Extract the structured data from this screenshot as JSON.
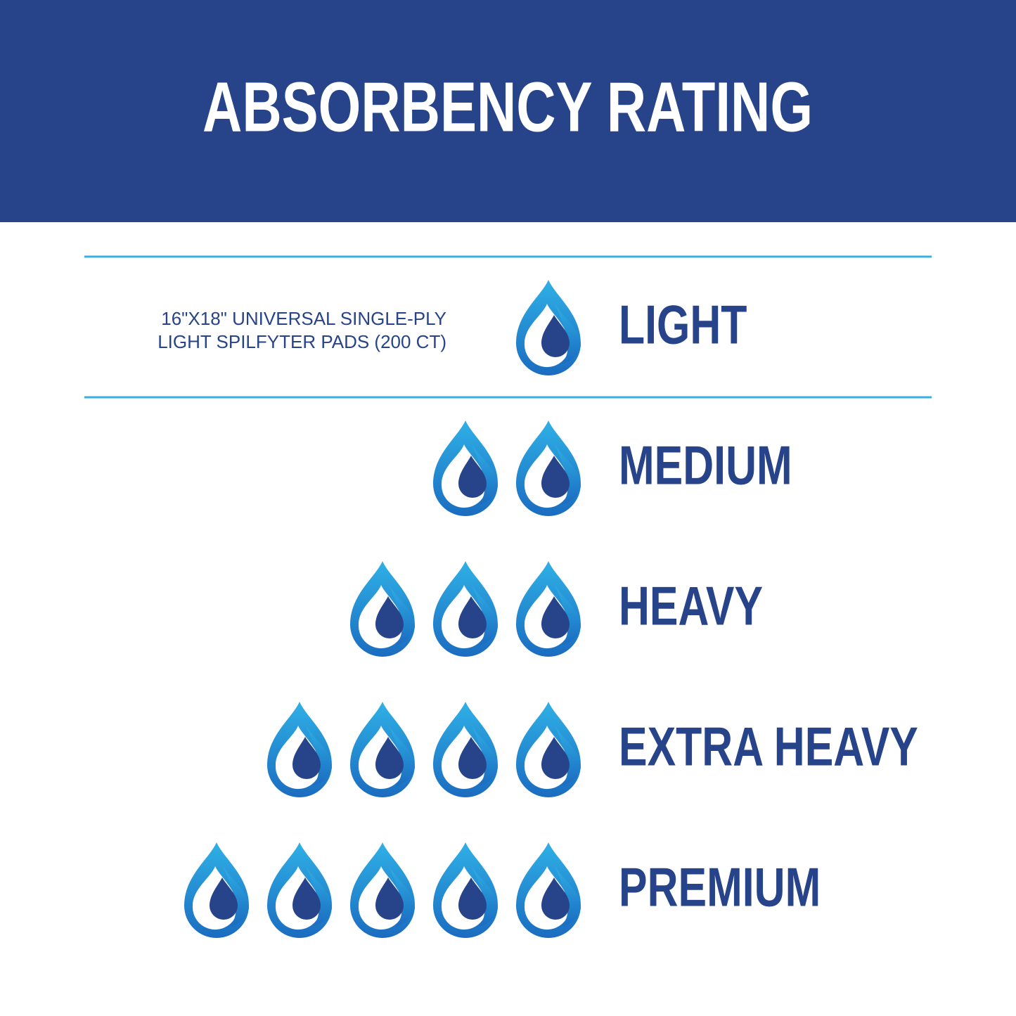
{
  "header": {
    "title": "ABSORBENCY RATING"
  },
  "product": {
    "lines": [
      "16\"X18\" UNIVERSAL SINGLE-PLY",
      "LIGHT SPILFYTER PADS (200 CT)"
    ]
  },
  "levels": [
    {
      "label": "LIGHT",
      "drops": 1
    },
    {
      "label": "MEDIUM",
      "drops": 2
    },
    {
      "label": "HEAVY",
      "drops": 3
    },
    {
      "label": "EXTRA HEAVY",
      "drops": 4
    },
    {
      "label": "PREMIUM",
      "drops": 5
    }
  ]
}
